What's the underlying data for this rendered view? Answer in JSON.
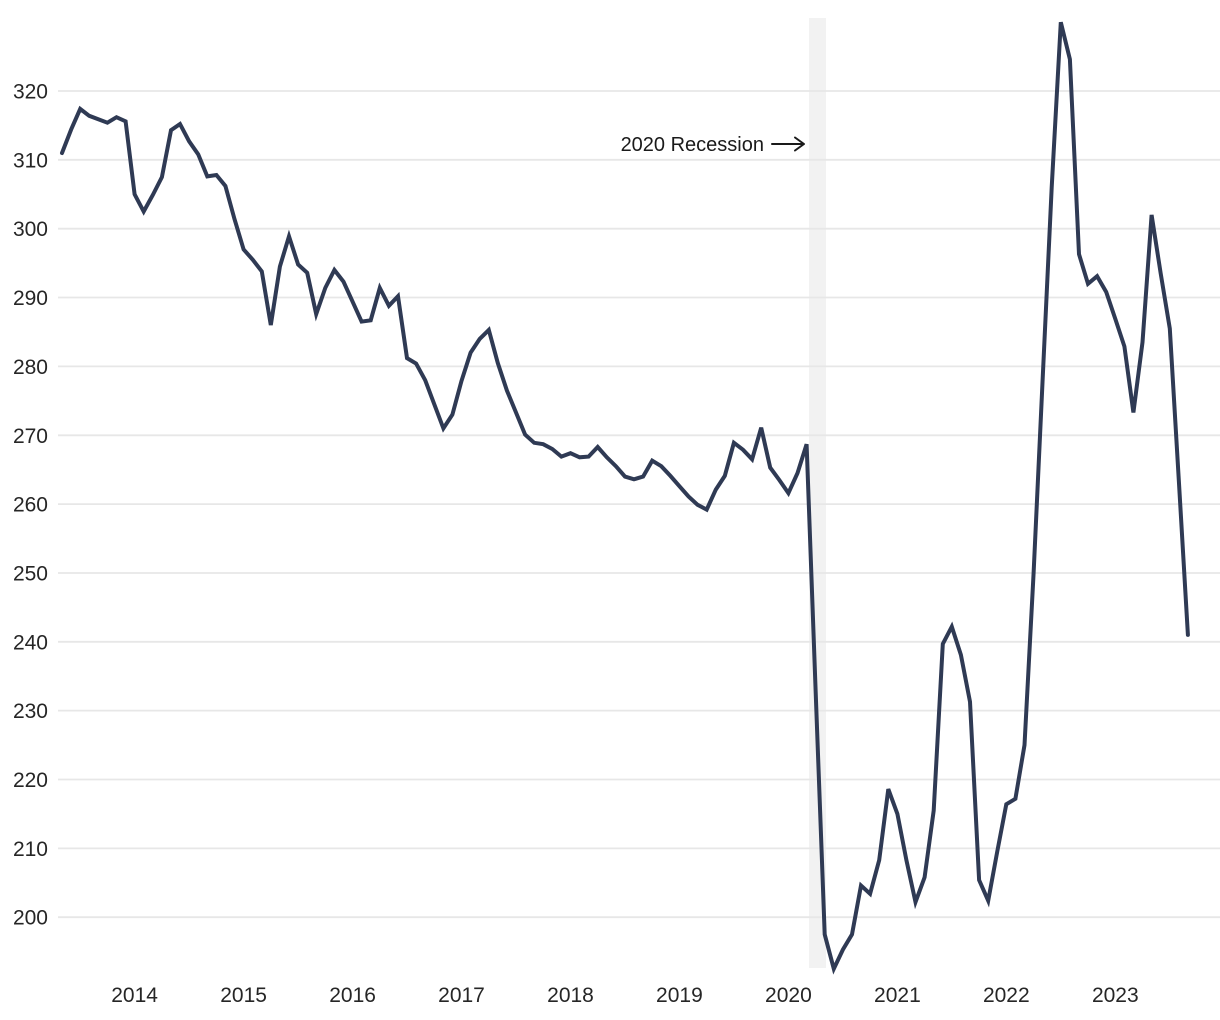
{
  "page": {
    "background_color": "#ffffff"
  },
  "annotation": {
    "text": "2020 Recession",
    "arrow_symbol": "→"
  },
  "axes": {
    "y_ticks": [
      320,
      310,
      300,
      290,
      280,
      270,
      260,
      250,
      240,
      230,
      220,
      210,
      200
    ],
    "x_ticks": [
      "2014",
      "2015",
      "2016",
      "2017",
      "2018",
      "2019",
      "2020",
      "2021",
      "2022",
      "2023"
    ]
  },
  "colors": {
    "line": "#2f3a54",
    "grid": "#e7e7e7",
    "recession_band": "#f2f2f2",
    "tick_text": "#262626",
    "annotation_text": "#1a1a1a"
  },
  "chart_data": {
    "type": "line",
    "title": "",
    "frequency": "monthly",
    "x_start": "2013-05",
    "x_end": "2023-09",
    "ylim_displayed": [
      200,
      320
    ],
    "grid": "horizontal-only",
    "legend": "none",
    "annotations": [
      {
        "label": "2020 Recession",
        "style": "text-with-right-arrow",
        "points_to": "recession band"
      }
    ],
    "recession_band": {
      "label": "2020 Recession",
      "x_start": "2020-03",
      "x_end": "2020-05",
      "color": "#f2f2f2"
    },
    "months": [
      "2013-05",
      "2013-06",
      "2013-07",
      "2013-08",
      "2013-09",
      "2013-10",
      "2013-11",
      "2013-12",
      "2014-01",
      "2014-02",
      "2014-03",
      "2014-04",
      "2014-05",
      "2014-06",
      "2014-07",
      "2014-08",
      "2014-09",
      "2014-10",
      "2014-11",
      "2014-12",
      "2015-01",
      "2015-02",
      "2015-03",
      "2015-04",
      "2015-05",
      "2015-06",
      "2015-07",
      "2015-08",
      "2015-09",
      "2015-10",
      "2015-11",
      "2015-12",
      "2016-01",
      "2016-02",
      "2016-03",
      "2016-04",
      "2016-05",
      "2016-06",
      "2016-07",
      "2016-08",
      "2016-09",
      "2016-10",
      "2016-11",
      "2016-12",
      "2017-01",
      "2017-02",
      "2017-03",
      "2017-04",
      "2017-05",
      "2017-06",
      "2017-07",
      "2017-08",
      "2017-09",
      "2017-10",
      "2017-11",
      "2017-12",
      "2018-01",
      "2018-02",
      "2018-03",
      "2018-04",
      "2018-05",
      "2018-06",
      "2018-07",
      "2018-08",
      "2018-09",
      "2018-10",
      "2018-11",
      "2018-12",
      "2019-01",
      "2019-02",
      "2019-03",
      "2019-04",
      "2019-05",
      "2019-06",
      "2019-07",
      "2019-08",
      "2019-09",
      "2019-10",
      "2019-11",
      "2019-12",
      "2020-01",
      "2020-02",
      "2020-03",
      "2020-04",
      "2020-05",
      "2020-06",
      "2020-07",
      "2020-08",
      "2020-09",
      "2020-10",
      "2020-11",
      "2020-12",
      "2021-01",
      "2021-02",
      "2021-03",
      "2021-04",
      "2021-05",
      "2021-06",
      "2021-07",
      "2021-08",
      "2021-09",
      "2021-10",
      "2021-11",
      "2021-12",
      "2022-01",
      "2022-02",
      "2022-03",
      "2022-04",
      "2022-05",
      "2022-06",
      "2022-07",
      "2022-08",
      "2022-09",
      "2022-10",
      "2022-11",
      "2022-12",
      "2023-01",
      "2023-02",
      "2023-03",
      "2023-04",
      "2023-05",
      "2023-06",
      "2023-07",
      "2023-08",
      "2023-09"
    ],
    "values": [
      311.0,
      314.4,
      317.4,
      316.4,
      315.9,
      315.4,
      316.2,
      315.6,
      305.0,
      302.5,
      304.9,
      307.5,
      314.3,
      315.2,
      312.7,
      310.8,
      307.6,
      307.8,
      306.2,
      301.4,
      297.0,
      295.5,
      293.8,
      286.0,
      294.5,
      298.9,
      294.8,
      293.6,
      287.6,
      291.4,
      294.0,
      292.3,
      289.4,
      286.5,
      286.7,
      291.4,
      288.8,
      290.2,
      281.2,
      280.4,
      278.0,
      274.5,
      271.0,
      273.0,
      277.9,
      282.0,
      284.0,
      285.3,
      280.5,
      276.5,
      273.3,
      270.1,
      268.9,
      268.7,
      268.0,
      266.9,
      267.4,
      266.8,
      266.9,
      268.3,
      266.8,
      265.5,
      264.0,
      263.6,
      264.0,
      266.3,
      265.5,
      264.1,
      262.6,
      261.1,
      259.9,
      259.2,
      262.1,
      264.1,
      268.9,
      267.9,
      266.5,
      271.1,
      265.3,
      263.5,
      261.6,
      264.5,
      268.7,
      233.0,
      197.5,
      192.5,
      195.3,
      197.5,
      204.6,
      203.4,
      208.3,
      218.6,
      215.0,
      208.3,
      202.2,
      205.8,
      215.5,
      239.7,
      242.2,
      238.1,
      231.3,
      205.4,
      202.4,
      209.5,
      216.4,
      217.2,
      225.0,
      250.0,
      278.0,
      306.0,
      330.0,
      324.6,
      296.3,
      292.0,
      293.1,
      290.8,
      286.9,
      282.9,
      273.3,
      283.5,
      302.0,
      293.5,
      285.5,
      263.5,
      241.0
    ]
  }
}
